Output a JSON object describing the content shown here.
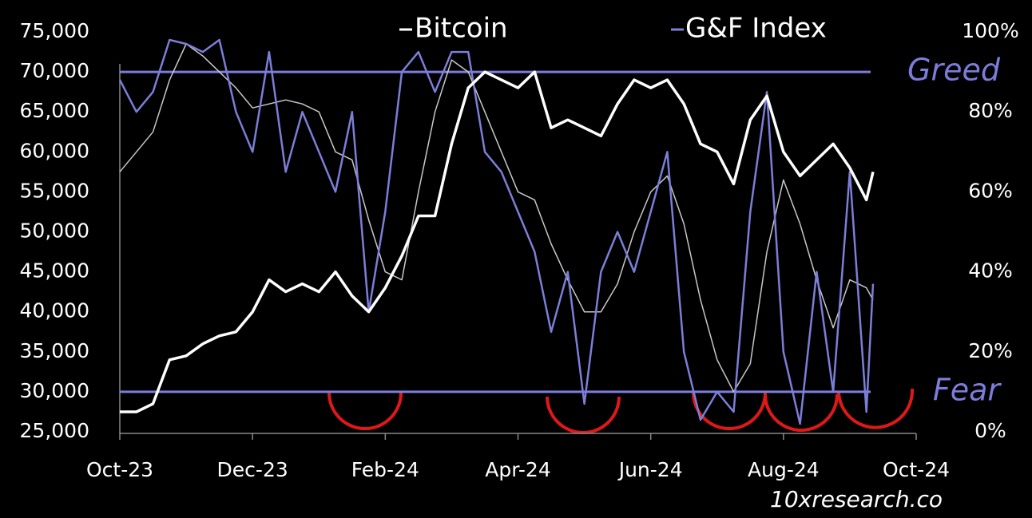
{
  "chart_data": {
    "type": "line",
    "x": [
      0,
      0.25,
      0.5,
      0.75,
      1,
      1.25,
      1.5,
      1.75,
      2,
      2.25,
      2.5,
      2.75,
      3,
      3.25,
      3.5,
      3.75,
      4,
      4.25,
      4.5,
      4.75,
      5,
      5.25,
      5.5,
      5.75,
      6,
      6.25,
      6.5,
      6.75,
      7,
      7.25,
      7.5,
      7.75,
      8,
      8.25,
      8.5,
      8.75,
      9,
      9.25,
      9.5,
      9.75,
      10,
      10.25,
      10.5,
      10.75,
      11,
      11.25,
      11.35
    ],
    "xlim": [
      0,
      12
    ],
    "xticks": [
      {
        "value": 0,
        "label": "Oct-23"
      },
      {
        "value": 2,
        "label": "Dec-23"
      },
      {
        "value": 4,
        "label": "Feb-24"
      },
      {
        "value": 6,
        "label": "Apr-24"
      },
      {
        "value": 8,
        "label": "Jun-24"
      },
      {
        "value": 10,
        "label": "Aug-24"
      },
      {
        "value": 12,
        "label": "Oct-24"
      }
    ],
    "ylim": [
      25000,
      75000
    ],
    "yticks": [
      {
        "value": 25000,
        "label": "25,000"
      },
      {
        "value": 30000,
        "label": "30,000"
      },
      {
        "value": 35000,
        "label": "35,000"
      },
      {
        "value": 40000,
        "label": "40,000"
      },
      {
        "value": 45000,
        "label": "45,000"
      },
      {
        "value": 50000,
        "label": "50,000"
      },
      {
        "value": 55000,
        "label": "55,000"
      },
      {
        "value": 60000,
        "label": "60,000"
      },
      {
        "value": 65000,
        "label": "65,000"
      },
      {
        "value": 70000,
        "label": "70,000"
      },
      {
        "value": 75000,
        "label": "75,000"
      }
    ],
    "y2lim": [
      0,
      100
    ],
    "y2ticks": [
      {
        "value": 0,
        "label": "0%"
      },
      {
        "value": 20,
        "label": "20%"
      },
      {
        "value": 40,
        "label": "40%"
      },
      {
        "value": 60,
        "label": "60%"
      },
      {
        "value": 80,
        "label": "80%"
      },
      {
        "value": 100,
        "label": "100%"
      }
    ],
    "hlines": [
      {
        "value": 70000,
        "label": "Greed"
      },
      {
        "value": 30000,
        "label": "Fear"
      }
    ],
    "hline_color": "#7c7cdc",
    "source": "10xresearch.co",
    "series": [
      {
        "name": "Bitcoin",
        "color": "#ffffff",
        "values": [
          27500,
          27500,
          28500,
          34000,
          34500,
          36000,
          37000,
          37500,
          40000,
          44000,
          42500,
          43500,
          42500,
          45000,
          42000,
          40000,
          43000,
          47000,
          52000,
          52000,
          61000,
          68000,
          70000,
          69000,
          68000,
          70000,
          63000,
          64000,
          63000,
          62000,
          66000,
          69000,
          68000,
          69000,
          66000,
          61000,
          60000,
          56000,
          64000,
          67000,
          60000,
          57000,
          59000,
          61000,
          58000,
          54000,
          57500
        ]
      },
      {
        "name": "G&F Index",
        "color": "#7b7fd8",
        "axis": "y2",
        "values": [
          88,
          80,
          85,
          98,
          97,
          95,
          98,
          80,
          70,
          95,
          65,
          80,
          70,
          60,
          80,
          30,
          55,
          90,
          95,
          85,
          95,
          95,
          70,
          65,
          55,
          45,
          25,
          40,
          7,
          40,
          50,
          40,
          55,
          70,
          20,
          3,
          10,
          5,
          55,
          85,
          20,
          2,
          40,
          10,
          65,
          5,
          37
        ]
      },
      {
        "color": "#c8c8c8",
        "axis": "y2",
        "values": [
          65,
          70,
          75,
          88,
          97,
          94,
          90,
          86,
          81,
          82,
          83,
          82,
          80,
          70,
          68,
          53,
          40,
          38,
          60,
          80,
          93,
          90,
          80,
          70,
          60,
          58,
          47,
          38,
          30,
          30,
          37,
          50,
          60,
          64,
          52,
          33,
          18,
          10,
          17,
          45,
          63,
          52,
          38,
          26,
          38,
          36,
          33
        ]
      }
    ]
  }
}
